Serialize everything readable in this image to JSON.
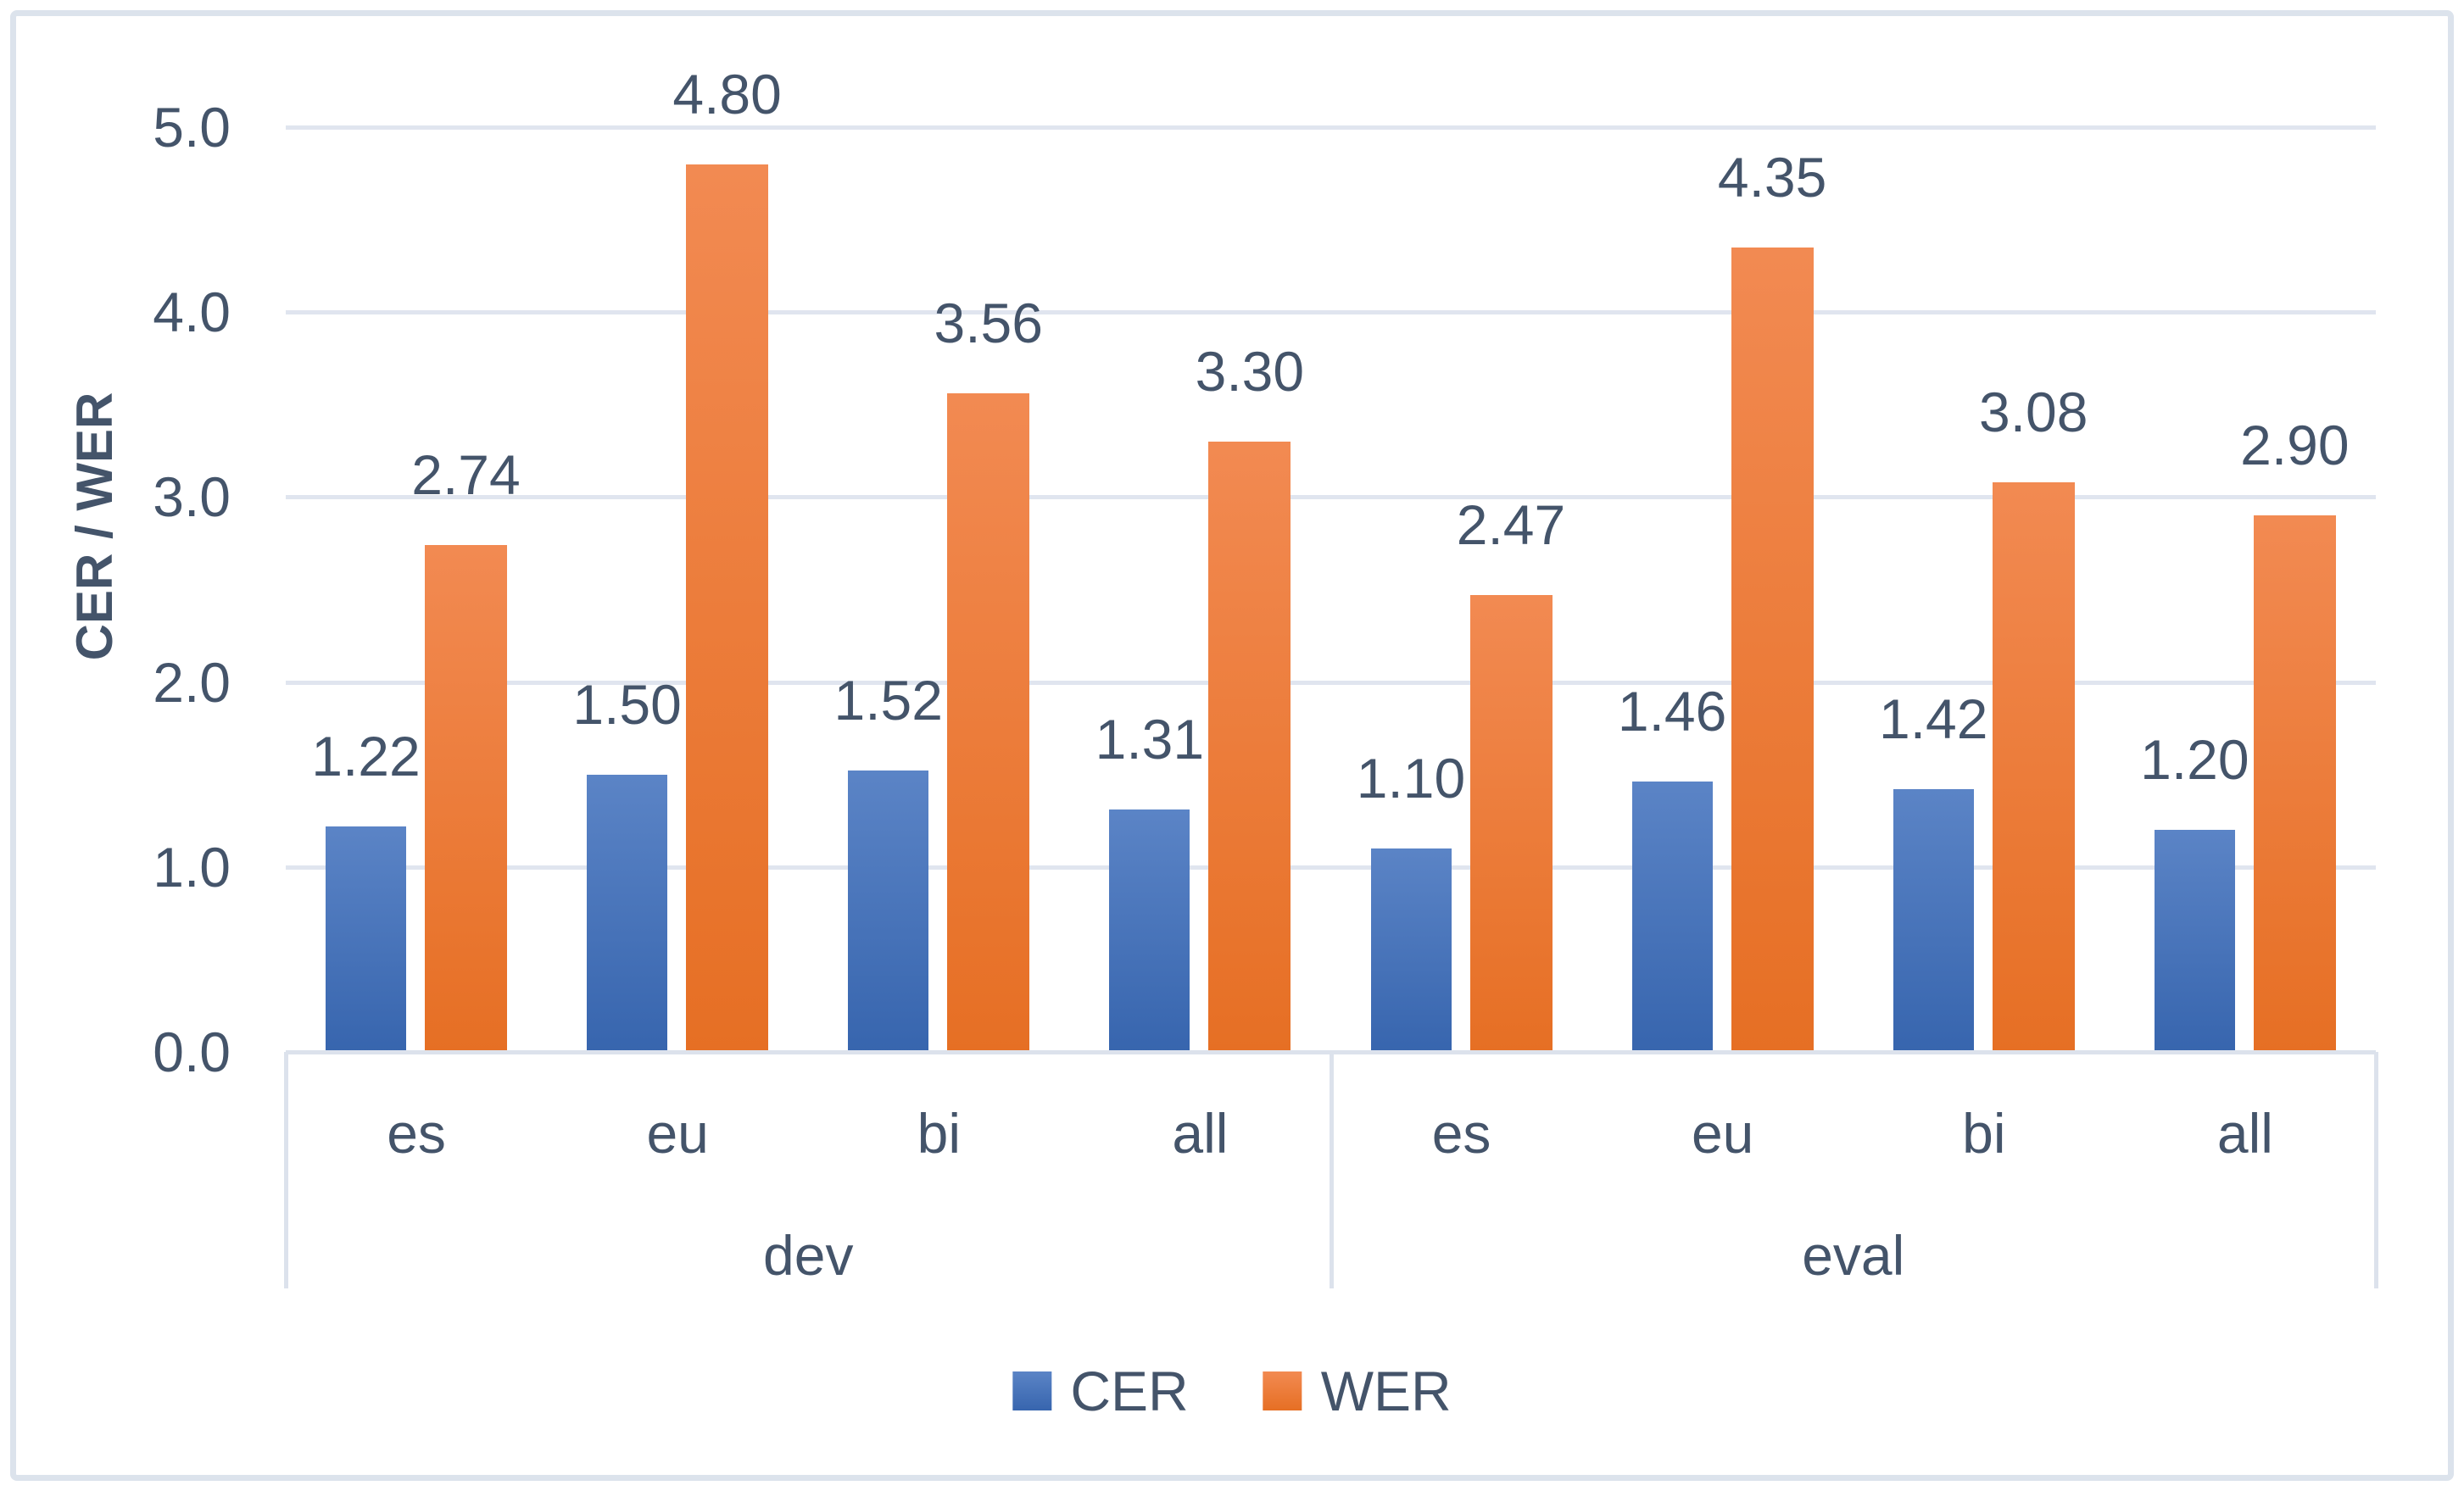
{
  "chart_data": {
    "type": "bar",
    "title": "",
    "ylabel": "CER / WER",
    "xlabel": "",
    "ylim": [
      0,
      5
    ],
    "yticks": [
      0,
      1,
      2,
      3,
      4,
      5
    ],
    "ytick_labels": [
      "0.0",
      "1.0",
      "2.0",
      "3.0",
      "4.0",
      "5.0"
    ],
    "grid": true,
    "legend_position": "bottom",
    "legend": [
      "CER",
      "WER"
    ],
    "groups": [
      {
        "label": "dev",
        "categories": [
          "es",
          "eu",
          "bi",
          "all"
        ],
        "series": [
          {
            "name": "CER",
            "values": [
              1.22,
              1.5,
              1.52,
              1.31
            ]
          },
          {
            "name": "WER",
            "values": [
              2.74,
              4.8,
              3.56,
              3.3
            ]
          }
        ]
      },
      {
        "label": "eval",
        "categories": [
          "es",
          "eu",
          "bi",
          "all"
        ],
        "series": [
          {
            "name": "CER",
            "values": [
              1.1,
              1.46,
              1.42,
              1.2
            ]
          },
          {
            "name": "WER",
            "values": [
              2.47,
              4.35,
              3.08,
              2.9
            ]
          }
        ]
      }
    ],
    "value_labels_decimals": 2
  },
  "colors": {
    "text": "#44546A",
    "gridline": "#E0E5EF",
    "axis_line": "#DCE2EC",
    "divider": "#DCE2EC",
    "frame_border": "#DCE3EC",
    "background": "#FFFFFF",
    "cer_gradient_top": "#5B84C6",
    "cer_gradient_bottom": "#3765AE",
    "wer_gradient_top": "#F28A52",
    "wer_gradient_bottom": "#E66F24"
  }
}
